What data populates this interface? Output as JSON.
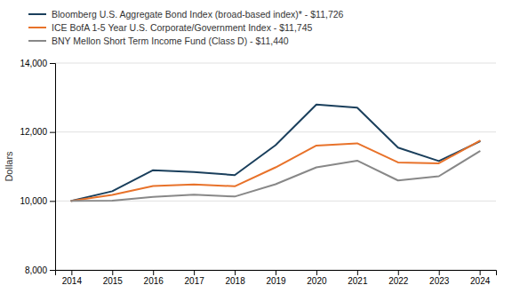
{
  "chart_data": {
    "type": "line",
    "ylabel": "Dollars",
    "x": [
      2014,
      2015,
      2016,
      2017,
      2018,
      2019,
      2020,
      2021,
      2022,
      2023,
      2024
    ],
    "series": [
      {
        "name": "Bloomberg U.S. Aggregate Bond Index (broad-based index)* - $11,726",
        "color": "#1a3f5c",
        "values": [
          10000,
          10282,
          10893,
          10837,
          10750,
          11619,
          12795,
          12705,
          11546,
          11157,
          11726
        ]
      },
      {
        "name": "ICE BofA 1-5 Year U.S. Corporate/Government Index - $11,745",
        "color": "#e8722a",
        "values": [
          10000,
          10175,
          10435,
          10476,
          10426,
          10974,
          11608,
          11672,
          11119,
          11092,
          11745
        ]
      },
      {
        "name": "BNY Mellon Short Term Income Fund (Class D) - $11,440",
        "color": "#888888",
        "values": [
          10000,
          10008,
          10120,
          10185,
          10128,
          10486,
          10975,
          11170,
          10595,
          10717,
          11440
        ]
      }
    ],
    "xlim": [
      2013.6,
      2024.4
    ],
    "xticks": [
      2014,
      2015,
      2016,
      2017,
      2018,
      2019,
      2020,
      2021,
      2022,
      2023,
      2024
    ],
    "ylim": [
      8000,
      14000
    ],
    "yticks": [
      {
        "value": 8000,
        "label": "8,000"
      },
      {
        "value": 10000,
        "label": "10,000"
      },
      {
        "value": 12000,
        "label": "12,000"
      },
      {
        "value": 14000,
        "label": "14,000"
      }
    ],
    "grid": true,
    "legend": "upper left"
  }
}
